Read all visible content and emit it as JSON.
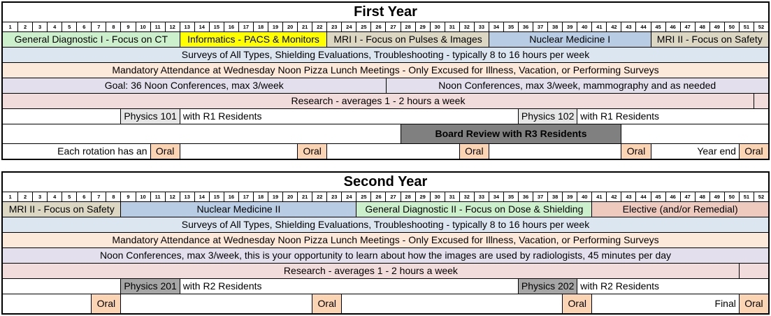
{
  "colors": {
    "green": "#ccf0cc",
    "yellow": "#ffff00",
    "tan": "#dbd7c2",
    "blue": "#b8cce4",
    "surveys": "#dce6f1",
    "peach": "#fde9d9",
    "lavender": "#e4dfec",
    "rose": "#f2dcdb",
    "oral": "#fbd4b4",
    "salmon": "#eec9be",
    "lightgray": "#e7e6e6",
    "midgray": "#a6a6a6",
    "darkgray": "#808080"
  },
  "tables": [
    {
      "name": "first-year-table",
      "title": "First Year",
      "week_numbers": [
        1,
        2,
        3,
        4,
        5,
        6,
        7,
        8,
        9,
        10,
        11,
        12,
        13,
        14,
        15,
        16,
        17,
        18,
        19,
        20,
        21,
        22,
        23,
        24,
        25,
        26,
        27,
        28,
        29,
        30,
        31,
        32,
        33,
        34,
        35,
        36,
        37,
        38,
        39,
        40,
        41,
        42,
        43,
        44,
        45,
        46,
        47,
        48,
        49,
        50,
        51,
        52
      ],
      "rows": [
        {
          "name": "rotations-row",
          "cells": [
            {
              "text": "General Diagnostic I - Focus on CT",
              "from": 1,
              "to": 12,
              "bg": "green",
              "name": "rotation-cell"
            },
            {
              "text": "Informatics - PACS & Monitors",
              "from": 13,
              "to": 22,
              "bg": "yellow",
              "name": "rotation-cell"
            },
            {
              "text": "MRI I - Focus on Pulses & Images",
              "from": 23,
              "to": 33,
              "bg": "tan",
              "name": "rotation-cell"
            },
            {
              "text": "Nuclear Medicine I",
              "from": 34,
              "to": 44,
              "bg": "blue",
              "name": "rotation-cell"
            },
            {
              "text": "MRI II - Focus on Safety",
              "from": 45,
              "to": 52,
              "bg": "tan",
              "name": "rotation-cell"
            }
          ]
        },
        {
          "name": "surveys-row",
          "cells": [
            {
              "text": "Surveys of All Types, Shielding Evaluations, Troubleshooting - typically 8 to 16 hours per week",
              "from": 1,
              "to": 52,
              "bg": "surveys",
              "name": "activity-band"
            }
          ]
        },
        {
          "name": "mandatory-row",
          "cells": [
            {
              "text": "Mandatory Attendance at Wednesday Noon Pizza Lunch Meetings - Only Excused for Illness, Vacation, or Performing Surveys",
              "from": 1,
              "to": 52,
              "bg": "peach",
              "name": "activity-band"
            }
          ]
        },
        {
          "name": "noon-conferences-row",
          "cells": [
            {
              "text": "Goal: 36 Noon Conferences, max 3/week",
              "from": 1,
              "to": 26,
              "bg": "lavender",
              "name": "activity-band"
            },
            {
              "text": "Noon Conferences, max 3/week, mammography and as needed",
              "from": 27,
              "to": 52,
              "bg": "lavender",
              "name": "activity-band"
            }
          ]
        },
        {
          "name": "research-row",
          "cells": [
            {
              "text": "Research - averages 1 - 2 hours a week",
              "from": 1,
              "to": 51,
              "bg": "rose",
              "name": "activity-band"
            },
            {
              "text": "",
              "from": 52,
              "to": 52,
              "bg": "rose",
              "name": "activity-band"
            }
          ]
        },
        {
          "name": "physics-row",
          "cells": [
            {
              "text": "",
              "from": 1,
              "to": 8,
              "name": "empty-cell"
            },
            {
              "text": "Physics 101",
              "from": 9,
              "to": 12,
              "bg": "lightgray",
              "name": "physics-course-cell"
            },
            {
              "text": "with R1 Residents",
              "from": 13,
              "to": 35,
              "align": "left",
              "name": "course-note-cell"
            },
            {
              "text": "Physics 102",
              "from": 36,
              "to": 39,
              "bg": "lightgray",
              "name": "physics-course-cell"
            },
            {
              "text": "with R1 Residents",
              "from": 40,
              "to": 52,
              "align": "left",
              "name": "course-note-cell"
            }
          ]
        },
        {
          "name": "board-review-row",
          "kind": "tall",
          "cells": [
            {
              "text": "",
              "from": 1,
              "to": 27,
              "name": "empty-cell"
            },
            {
              "text": "Board Review with R3 Residents",
              "from": 28,
              "to": 42,
              "bg": "darkgray",
              "bold": true,
              "name": "board-review-cell"
            },
            {
              "text": "",
              "from": 43,
              "to": 52,
              "name": "empty-cell"
            }
          ]
        },
        {
          "name": "oral-exams-row",
          "cells": [
            {
              "text": "Each rotation has an",
              "from": 1,
              "to": 10,
              "align": "right",
              "name": "oral-label-cell"
            },
            {
              "text": "Oral",
              "from": 11,
              "to": 12,
              "bg": "oral",
              "name": "oral-exam-cell"
            },
            {
              "text": "",
              "from": 13,
              "to": 20,
              "name": "empty-cell"
            },
            {
              "text": "Oral",
              "from": 21,
              "to": 22,
              "bg": "oral",
              "name": "oral-exam-cell"
            },
            {
              "text": "",
              "from": 23,
              "to": 31,
              "name": "empty-cell"
            },
            {
              "text": "Oral",
              "from": 32,
              "to": 33,
              "bg": "oral",
              "name": "oral-exam-cell"
            },
            {
              "text": "",
              "from": 34,
              "to": 42,
              "name": "empty-cell"
            },
            {
              "text": "Oral",
              "from": 43,
              "to": 44,
              "bg": "oral",
              "name": "oral-exam-cell"
            },
            {
              "text": "Year end",
              "from": 45,
              "to": 50,
              "align": "right",
              "name": "oral-label-cell"
            },
            {
              "text": "Oral",
              "from": 51,
              "to": 52,
              "bg": "oral",
              "name": "oral-exam-cell"
            }
          ]
        }
      ]
    },
    {
      "name": "second-year-table",
      "title": "Second Year",
      "week_numbers": [
        1,
        2,
        3,
        4,
        5,
        6,
        7,
        8,
        9,
        10,
        11,
        12,
        13,
        14,
        15,
        16,
        17,
        18,
        19,
        20,
        21,
        22,
        23,
        24,
        25,
        26,
        27,
        28,
        29,
        30,
        31,
        32,
        33,
        34,
        35,
        36,
        37,
        38,
        39,
        40,
        41,
        42,
        43,
        44,
        45,
        46,
        47,
        48,
        49,
        50,
        51,
        52
      ],
      "rows": [
        {
          "name": "rotations-row",
          "cells": [
            {
              "text": "MRI II - Focus on Safety",
              "from": 1,
              "to": 8,
              "bg": "tan",
              "name": "rotation-cell"
            },
            {
              "text": "Nuclear Medicine II",
              "from": 9,
              "to": 24,
              "bg": "blue",
              "name": "rotation-cell"
            },
            {
              "text": "General Diagnostic II - Focus on Dose & Shielding",
              "from": 25,
              "to": 40,
              "bg": "green",
              "name": "rotation-cell"
            },
            {
              "text": "Elective (and/or Remedial)",
              "from": 41,
              "to": 52,
              "bg": "salmon",
              "name": "rotation-cell"
            }
          ]
        },
        {
          "name": "surveys-row",
          "cells": [
            {
              "text": "Surveys of All Types, Shielding Evaluations, Troubleshooting - typically 8 to 16 hours per week",
              "from": 1,
              "to": 52,
              "bg": "surveys",
              "name": "activity-band"
            }
          ]
        },
        {
          "name": "mandatory-row",
          "cells": [
            {
              "text": "Mandatory Attendance at Wednesday Noon Pizza Lunch Meetings - Only Excused for Illness, Vacation, or Performing Surveys",
              "from": 1,
              "to": 52,
              "bg": "peach",
              "name": "activity-band"
            }
          ]
        },
        {
          "name": "noon-conferences-row",
          "cells": [
            {
              "text": "Noon Conferences, max 3/week, this is your opportunity to learn about how the images are used by radiologists, 45 minutes per day",
              "from": 1,
              "to": 52,
              "bg": "lavender",
              "name": "activity-band"
            }
          ]
        },
        {
          "name": "research-row",
          "cells": [
            {
              "text": "Research - averages 1 - 2 hours a week",
              "from": 1,
              "to": 50,
              "bg": "rose",
              "name": "activity-band"
            },
            {
              "text": "",
              "from": 51,
              "to": 52,
              "bg": "rose",
              "name": "activity-band"
            }
          ]
        },
        {
          "name": "physics-row",
          "cells": [
            {
              "text": "",
              "from": 1,
              "to": 8,
              "name": "empty-cell"
            },
            {
              "text": "Physics 201",
              "from": 9,
              "to": 12,
              "bg": "midgray",
              "name": "physics-course-cell"
            },
            {
              "text": "with R2 Residents",
              "from": 13,
              "to": 35,
              "align": "left",
              "name": "course-note-cell"
            },
            {
              "text": "Physics 202",
              "from": 36,
              "to": 39,
              "bg": "midgray",
              "name": "physics-course-cell"
            },
            {
              "text": "with R2 Residents",
              "from": 40,
              "to": 52,
              "align": "left",
              "name": "course-note-cell"
            }
          ]
        },
        {
          "name": "oral-exams-row",
          "kind": "tall",
          "cells": [
            {
              "text": "",
              "from": 1,
              "to": 6,
              "name": "empty-cell"
            },
            {
              "text": "Oral",
              "from": 7,
              "to": 8,
              "bg": "oral",
              "name": "oral-exam-cell"
            },
            {
              "text": "",
              "from": 9,
              "to": 21,
              "name": "empty-cell"
            },
            {
              "text": "Oral",
              "from": 22,
              "to": 23,
              "bg": "oral",
              "name": "oral-exam-cell"
            },
            {
              "text": "",
              "from": 24,
              "to": 38,
              "name": "empty-cell"
            },
            {
              "text": "Oral",
              "from": 39,
              "to": 40,
              "bg": "oral",
              "name": "oral-exam-cell"
            },
            {
              "text": "Final",
              "from": 41,
              "to": 50,
              "align": "right",
              "name": "oral-label-cell"
            },
            {
              "text": "Oral",
              "from": 51,
              "to": 52,
              "bg": "oral",
              "name": "oral-exam-cell"
            }
          ]
        }
      ]
    }
  ]
}
